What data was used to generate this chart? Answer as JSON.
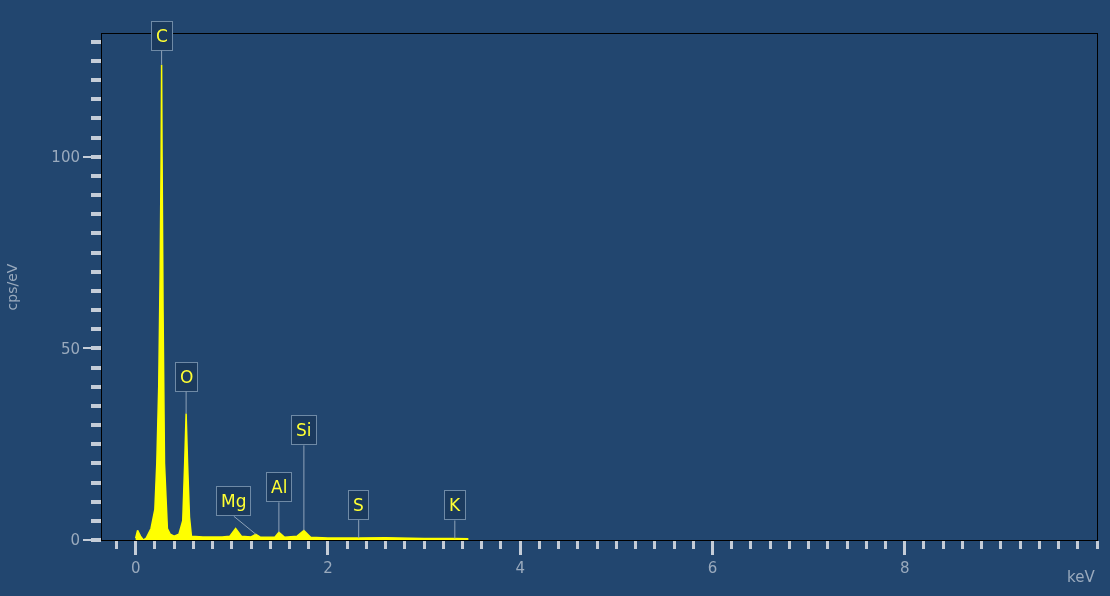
{
  "chart_data": {
    "type": "area",
    "xlabel": "keV",
    "ylabel": "cps/eV",
    "xlim": [
      -0.35,
      10.0
    ],
    "ylim": [
      0,
      132
    ],
    "xticks": [
      0,
      2,
      4,
      6,
      8
    ],
    "yticks": [
      0,
      50,
      100
    ],
    "grid": false,
    "marker": "none",
    "series": [
      {
        "color": "#ffff00",
        "x": [
          0.0,
          0.02,
          0.05,
          0.08,
          0.11,
          0.16,
          0.2,
          0.22,
          0.24,
          0.255,
          0.265,
          0.27,
          0.275,
          0.285,
          0.3,
          0.33,
          0.36,
          0.4,
          0.45,
          0.49,
          0.51,
          0.525,
          0.54,
          0.56,
          0.58,
          0.7,
          0.9,
          0.98,
          1.04,
          1.1,
          1.2,
          1.25,
          1.3,
          1.45,
          1.49,
          1.55,
          1.68,
          1.75,
          1.82,
          2.0,
          2.32,
          2.6,
          3.0,
          3.32,
          3.46
        ],
        "values": [
          0.5,
          2.5,
          1,
          0,
          0.5,
          3,
          8,
          20,
          40,
          70,
          100,
          124,
          100,
          60,
          20,
          3,
          1.5,
          1,
          1.5,
          5,
          20,
          33,
          20,
          6,
          1,
          0.8,
          0.8,
          1,
          3,
          1,
          0.8,
          1.5,
          0.7,
          0.8,
          2,
          0.7,
          1,
          2.5,
          0.7,
          0.5,
          0.5,
          0.6,
          0.4,
          0.4,
          0.3
        ]
      }
    ],
    "annotations": [
      {
        "text": "C",
        "x": 0.27,
        "y": 124
      },
      {
        "text": "O",
        "x": 0.525,
        "y": 33
      },
      {
        "text": "Mg",
        "x": 1.25,
        "y": 1.5
      },
      {
        "text": "Al",
        "x": 1.49,
        "y": 2
      },
      {
        "text": "Si",
        "x": 1.75,
        "y": 2.5
      },
      {
        "text": "S",
        "x": 2.32,
        "y": 0.5
      },
      {
        "text": "K",
        "x": 3.32,
        "y": 0.4
      }
    ]
  }
}
